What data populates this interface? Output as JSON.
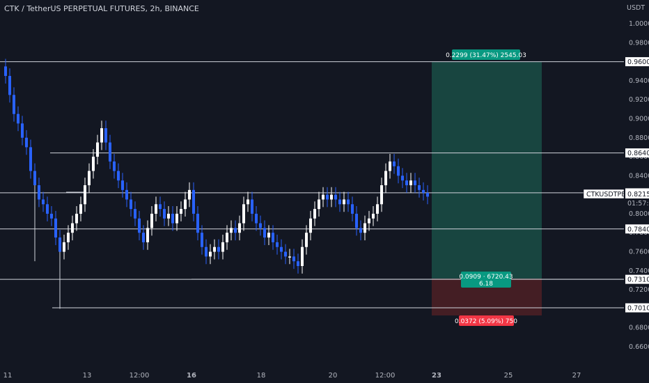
{
  "header": {
    "title": "CTK / TetherUS PERPETUAL FUTURES, 2h, BINANCE"
  },
  "price_axis": {
    "currency": "USDT",
    "ticks": [
      "1.0000",
      "0.9800",
      "0.9600",
      "0.9400",
      "0.9200",
      "0.9000",
      "0.8800",
      "0.8600",
      "0.8400",
      "0.8200",
      "0.8000",
      "0.7800",
      "0.7600",
      "0.7400",
      "0.7200",
      "0.7000",
      "0.6800",
      "0.6600"
    ]
  },
  "time_axis": {
    "ticks": [
      {
        "label": "11",
        "bold": false
      },
      {
        "label": "13",
        "bold": false
      },
      {
        "label": "12:00",
        "bold": false
      },
      {
        "label": "16",
        "bold": true
      },
      {
        "label": "18",
        "bold": false
      },
      {
        "label": "20",
        "bold": false
      },
      {
        "label": "12:00",
        "bold": false
      },
      {
        "label": "23",
        "bold": true
      },
      {
        "label": "25",
        "bold": false
      },
      {
        "label": "27",
        "bold": false
      }
    ]
  },
  "levels": [
    {
      "price": 0.96,
      "label": "0.9600"
    },
    {
      "price": 0.864,
      "label": "0.8640"
    },
    {
      "price": 0.822,
      "label": "0.8220"
    },
    {
      "price": 0.784,
      "label": "0.7840"
    },
    {
      "price": 0.731,
      "label": "0.7310"
    },
    {
      "price": 0.701,
      "label": "0.7010"
    }
  ],
  "current_price": {
    "symbol": "CTKUSDTPERP",
    "price": "0.8215",
    "countdown": "01:57:57"
  },
  "position": {
    "target_label": "0.2299 (31.47%) 2545.03",
    "entry_label_line1": "0.0909 · 6720.43",
    "entry_label_line2": "6.18",
    "stop_label": "0.0372 (5.09%) 750"
  },
  "colors": {
    "background": "#131722",
    "bull": "#ffffff",
    "bear": "#2962ff",
    "profit_zone": "#1a4d45",
    "loss_zone": "#4a1f25",
    "profit_tag": "#089981",
    "loss_tag": "#f23645",
    "price_tag": "#ffffff"
  }
}
